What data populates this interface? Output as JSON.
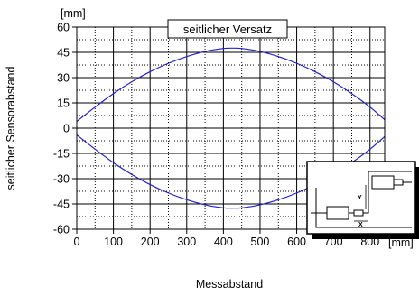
{
  "chart_data": {
    "type": "line",
    "title": "seitlicher Versatz",
    "xlabel": "Messabstand",
    "ylabel": "seitlicher Sensorabstand",
    "x_unit": "[mm]",
    "y_unit": "[mm]",
    "xlim": [
      0,
      840
    ],
    "ylim": [
      -60,
      60
    ],
    "x_ticks": [
      0,
      100,
      200,
      300,
      400,
      500,
      600,
      700,
      800
    ],
    "y_ticks": [
      60,
      45,
      30,
      15,
      0,
      -15,
      -30,
      -45,
      -60
    ],
    "x_tick_labels": [
      "0",
      "100",
      "200",
      "300",
      "400",
      "500",
      "600",
      "700",
      "800"
    ],
    "y_tick_labels": [
      "60",
      "45",
      "30",
      "15",
      "0",
      "-15",
      "-30",
      "-45",
      "-60"
    ],
    "grid": true,
    "series": [
      {
        "color": "#2222cc",
        "x": [
          0,
          50,
          100,
          150,
          200,
          250,
          300,
          350,
          400,
          425,
          450,
          500,
          550,
          600,
          650,
          700,
          750,
          800,
          840
        ],
        "values": [
          4,
          12.5,
          20.5,
          27.5,
          33.5,
          38.5,
          42.5,
          45.5,
          47.3,
          47.5,
          47.3,
          45.5,
          42.5,
          38.5,
          33.5,
          27.5,
          20.5,
          12.5,
          5
        ]
      },
      {
        "color": "#2222cc",
        "x": [
          0,
          50,
          100,
          150,
          200,
          250,
          300,
          350,
          400,
          425,
          450,
          500,
          550,
          600,
          650,
          700,
          750,
          800,
          840
        ],
        "values": [
          -4,
          -12.5,
          -20.5,
          -27.5,
          -33.5,
          -38.5,
          -42.5,
          -45.5,
          -47.3,
          -47.5,
          -47.3,
          -45.5,
          -42.5,
          -38.5,
          -33.5,
          -27.5,
          -20.5,
          -12.5,
          -5
        ]
      }
    ],
    "inset": {
      "icon": "sensor-offset-diagram-icon",
      "labels": [
        "Y",
        "X"
      ]
    }
  }
}
